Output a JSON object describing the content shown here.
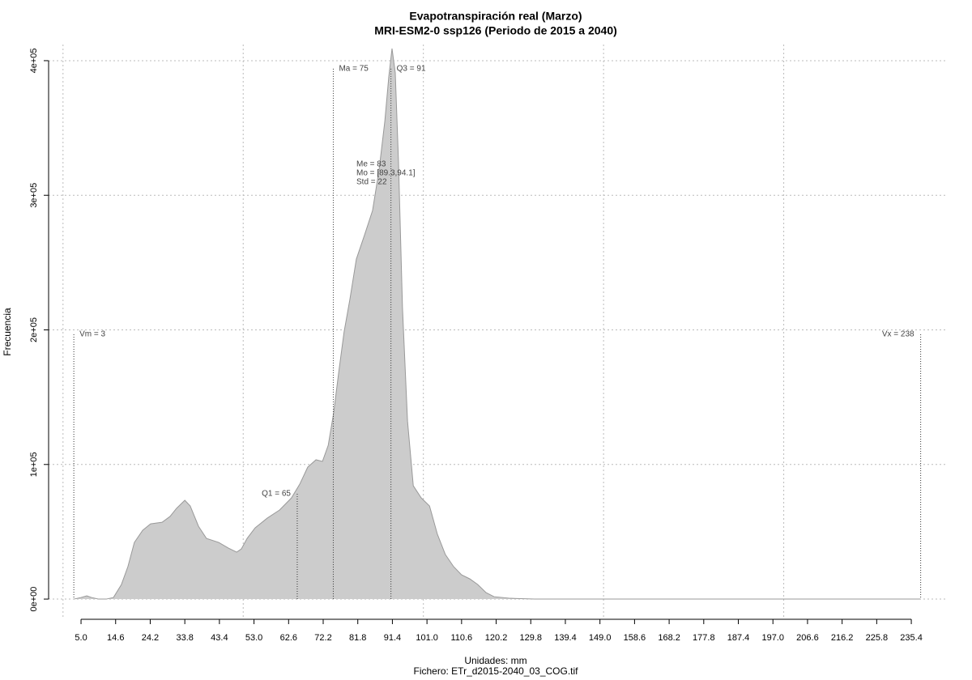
{
  "chart_data": {
    "type": "density",
    "title": "Evapotranspiración real (Marzo)",
    "subtitle": "MRI-ESM2-0 ssp126 (Periodo de 2015 a 2040)",
    "xlabel": "Unidades: mm",
    "caption": "Fichero: ETr_d2015-2040_03_COG.tif",
    "ylabel": "Frecuencia",
    "x": [
      3.0,
      5.0,
      6.6,
      7.9,
      9.9,
      12.0,
      14.0,
      16.2,
      18.0,
      19.8,
      22.1,
      24.3,
      27.5,
      29.7,
      31.5,
      33.8,
      35.3,
      37.6,
      39.8,
      43.2,
      45.9,
      48.2,
      49.5,
      51.1,
      53.3,
      56.7,
      60.1,
      63.4,
      65.7,
      67.9,
      70.2,
      72.0,
      73.6,
      75.1,
      76.5,
      78.0,
      79.6,
      81.4,
      83.7,
      85.9,
      87.7,
      89.3,
      90.4,
      91.3,
      92.2,
      93.1,
      94.2,
      95.6,
      97.2,
      99.4,
      101.7,
      103.9,
      106.1,
      108.4,
      110.6,
      112.9,
      115.1,
      117.4,
      119.6,
      124.1,
      130.9,
      139.9,
      238.0
    ],
    "y": [
      0,
      1200,
      2400,
      1200,
      0,
      0,
      1200,
      10800,
      24100,
      42100,
      51100,
      55900,
      57100,
      61400,
      67400,
      73400,
      69200,
      54100,
      45100,
      42100,
      37900,
      34900,
      37300,
      45100,
      52900,
      60200,
      66200,
      75200,
      85400,
      98000,
      103500,
      102300,
      114300,
      138300,
      168400,
      198500,
      222600,
      252600,
      270700,
      288700,
      318800,
      354900,
      388000,
      409000,
      391000,
      324800,
      216500,
      132300,
      84200,
      75200,
      69200,
      48100,
      33100,
      24100,
      18000,
      15000,
      10800,
      4800,
      1800,
      600,
      0,
      0,
      0
    ],
    "color": "#cccccc",
    "xlim": [
      -4,
      245.5
    ],
    "ylim": [
      -15000,
      412000
    ],
    "xticks": [
      {
        "value": 5,
        "label": "5.0"
      },
      14.6,
      24.2,
      33.8,
      43.4,
      {
        "value": 53,
        "label": "53.0"
      },
      62.6,
      72.2,
      81.8,
      91.4,
      {
        "value": 101,
        "label": "101.0"
      },
      110.6,
      120.2,
      129.8,
      139.4,
      {
        "value": 149,
        "label": "149.0"
      },
      158.6,
      168.2,
      177.8,
      187.4,
      {
        "value": 197,
        "label": "197.0"
      },
      206.6,
      216.2,
      225.8,
      235.4
    ],
    "yticks": [
      {
        "value": 0,
        "label": "0e+00"
      },
      {
        "value": 100000,
        "label": "1e+05"
      },
      {
        "value": 200000,
        "label": "2e+05"
      },
      {
        "value": 300000,
        "label": "3e+05"
      },
      {
        "value": 400000,
        "label": "4e+05"
      }
    ],
    "xgrid": [
      0,
      50,
      100,
      150,
      200
    ],
    "grid": true,
    "annotations": [
      {
        "x": 3,
        "y": 196700,
        "label": "Vm = 3",
        "side": "right"
      },
      {
        "x": 238,
        "y": 196700,
        "label": "Vx = 238",
        "side": "left"
      },
      {
        "x": 65,
        "y": 78200,
        "label": "Q1 = 65",
        "side": "left"
      },
      {
        "x": 75,
        "y": 394000,
        "label": "Ma = 75",
        "side": "right"
      },
      {
        "x": 91,
        "y": 394000,
        "label": "Q3 = 91",
        "side": "right"
      }
    ],
    "stats": [
      "Me = 83",
      "Mo = [89.3,94.1]",
      "Std = 22"
    ]
  }
}
